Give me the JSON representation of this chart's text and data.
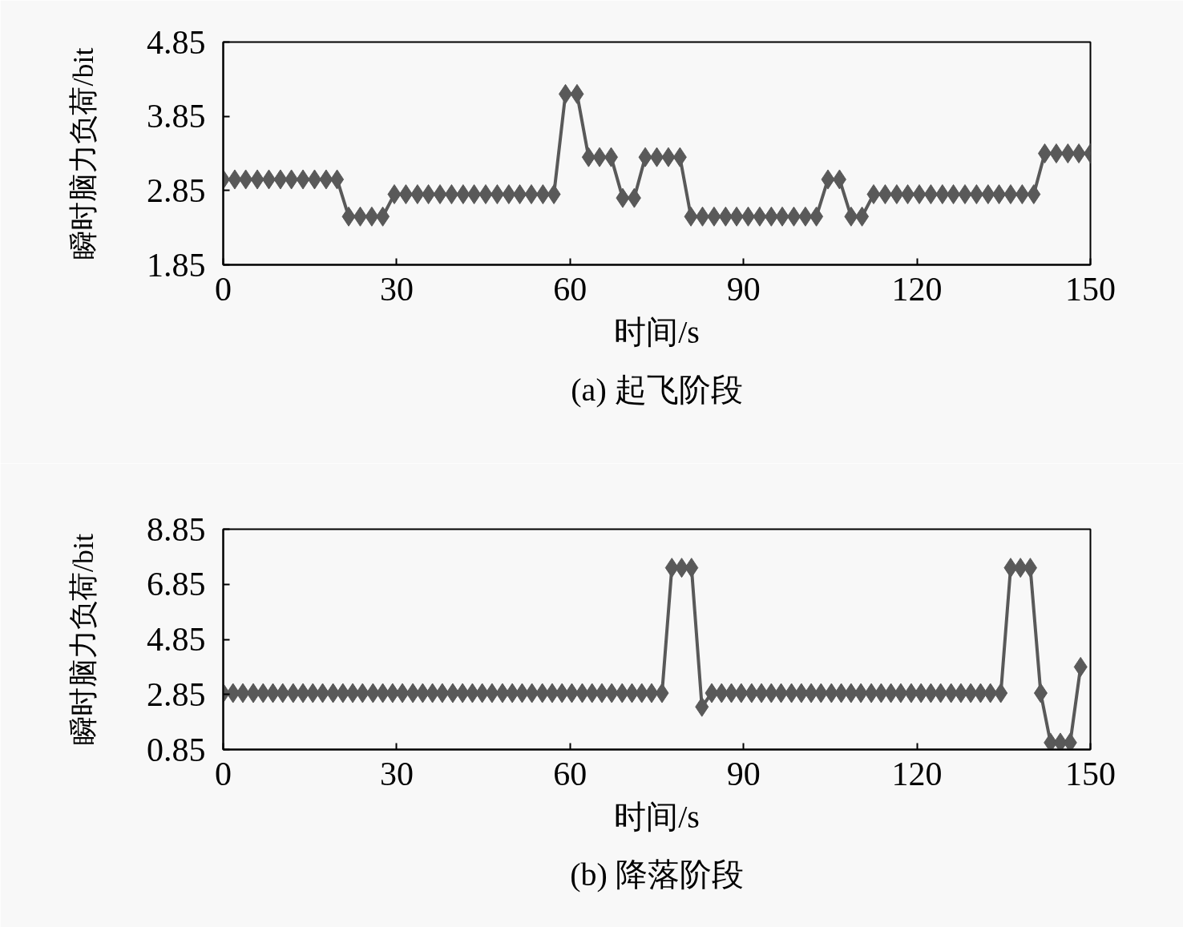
{
  "chart_data": [
    {
      "type": "line",
      "title": "(a) 起飞阶段",
      "xlabel": "时间/s",
      "ylabel": "瞬时脑力负荷/bit",
      "grid": false,
      "marker": "diamond",
      "line_style": "solid",
      "xlim": [
        0,
        150
      ],
      "ylim": [
        1.85,
        4.85
      ],
      "xticks": [
        0,
        30,
        60,
        90,
        120,
        150
      ],
      "yticks": [
        1.85,
        2.85,
        3.85,
        4.85
      ],
      "x": [
        0,
        2.0,
        3.9,
        5.9,
        7.9,
        9.9,
        11.8,
        13.8,
        15.8,
        17.8,
        19.7,
        21.7,
        23.7,
        25.7,
        27.6,
        29.6,
        31.6,
        33.6,
        35.5,
        37.5,
        39.5,
        41.5,
        43.4,
        45.4,
        47.4,
        49.4,
        51.3,
        53.3,
        55.3,
        57.2,
        59.2,
        61.2,
        63.2,
        65.1,
        67.1,
        69.1,
        71.1,
        73.0,
        75.0,
        77.0,
        79.0,
        80.9,
        82.9,
        84.9,
        86.9,
        88.8,
        90.8,
        92.8,
        94.8,
        96.7,
        98.7,
        100.7,
        102.6,
        104.6,
        106.6,
        108.6,
        110.5,
        112.5,
        114.5,
        116.5,
        118.4,
        120.4,
        122.4,
        124.4,
        126.3,
        128.3,
        130.3,
        132.3,
        134.2,
        136.2,
        138.2,
        140.2,
        142.1,
        144.1,
        146.1,
        148.0,
        150.0
      ],
      "series": [
        {
          "color": "#595959",
          "values": [
            3.0,
            3.0,
            3.0,
            3.0,
            3.0,
            3.0,
            3.0,
            3.0,
            3.0,
            3.0,
            3.0,
            2.5,
            2.5,
            2.5,
            2.5,
            2.8,
            2.8,
            2.8,
            2.8,
            2.8,
            2.8,
            2.8,
            2.8,
            2.8,
            2.8,
            2.8,
            2.8,
            2.8,
            2.8,
            2.8,
            4.15,
            4.15,
            3.3,
            3.3,
            3.3,
            2.75,
            2.75,
            3.3,
            3.3,
            3.3,
            3.3,
            2.5,
            2.5,
            2.5,
            2.5,
            2.5,
            2.5,
            2.5,
            2.5,
            2.5,
            2.5,
            2.5,
            2.5,
            3.0,
            3.0,
            2.5,
            2.5,
            2.8,
            2.8,
            2.8,
            2.8,
            2.8,
            2.8,
            2.8,
            2.8,
            2.8,
            2.8,
            2.8,
            2.8,
            2.8,
            2.8,
            2.8,
            3.35,
            3.35,
            3.35,
            3.35,
            3.35
          ]
        }
      ]
    },
    {
      "type": "line",
      "title": "(b) 降落阶段",
      "xlabel": "时间/s",
      "ylabel": "瞬时脑力负荷/bit",
      "grid": false,
      "marker": "diamond",
      "line_style": "solid",
      "xlim": [
        0,
        150
      ],
      "ylim": [
        0.85,
        8.85
      ],
      "xticks": [
        0,
        30,
        60,
        90,
        120,
        150
      ],
      "yticks": [
        0.85,
        2.85,
        4.85,
        6.85,
        8.85
      ],
      "x": [
        0,
        1.7,
        3.4,
        5.2,
        6.9,
        8.6,
        10.3,
        12.1,
        13.8,
        15.5,
        17.2,
        19.0,
        20.7,
        22.4,
        24.1,
        25.9,
        27.6,
        29.3,
        31.0,
        32.8,
        34.5,
        36.2,
        37.9,
        39.7,
        41.4,
        43.1,
        44.8,
        46.5,
        48.3,
        50.0,
        51.7,
        53.4,
        55.2,
        56.9,
        58.6,
        60.3,
        62.1,
        63.8,
        65.5,
        67.2,
        69.0,
        70.7,
        72.4,
        74.1,
        75.9,
        77.6,
        79.3,
        81.0,
        82.8,
        84.5,
        86.2,
        87.9,
        89.6,
        91.4,
        93.1,
        94.8,
        96.5,
        98.3,
        100.0,
        101.7,
        103.4,
        105.2,
        106.9,
        108.6,
        110.3,
        112.1,
        113.8,
        115.5,
        117.2,
        119.0,
        120.7,
        122.4,
        124.1,
        125.9,
        127.6,
        129.3,
        131.0,
        132.7,
        134.5,
        136.2,
        137.9,
        139.6,
        141.4,
        143.1,
        144.8,
        146.5,
        148.3
      ],
      "series": [
        {
          "color": "#595959",
          "values": [
            2.9,
            2.9,
            2.9,
            2.9,
            2.9,
            2.9,
            2.9,
            2.9,
            2.9,
            2.9,
            2.9,
            2.9,
            2.9,
            2.9,
            2.9,
            2.9,
            2.9,
            2.9,
            2.9,
            2.9,
            2.9,
            2.9,
            2.9,
            2.9,
            2.9,
            2.9,
            2.9,
            2.9,
            2.9,
            2.9,
            2.9,
            2.9,
            2.9,
            2.9,
            2.9,
            2.9,
            2.9,
            2.9,
            2.9,
            2.9,
            2.9,
            2.9,
            2.9,
            2.9,
            2.9,
            7.45,
            7.45,
            7.45,
            2.4,
            2.9,
            2.9,
            2.9,
            2.9,
            2.9,
            2.9,
            2.9,
            2.9,
            2.9,
            2.9,
            2.9,
            2.9,
            2.9,
            2.9,
            2.9,
            2.9,
            2.9,
            2.9,
            2.9,
            2.9,
            2.9,
            2.9,
            2.9,
            2.9,
            2.9,
            2.9,
            2.9,
            2.9,
            2.9,
            2.9,
            7.45,
            7.45,
            7.45,
            2.9,
            1.1,
            1.1,
            1.1,
            3.85
          ]
        }
      ]
    }
  ]
}
